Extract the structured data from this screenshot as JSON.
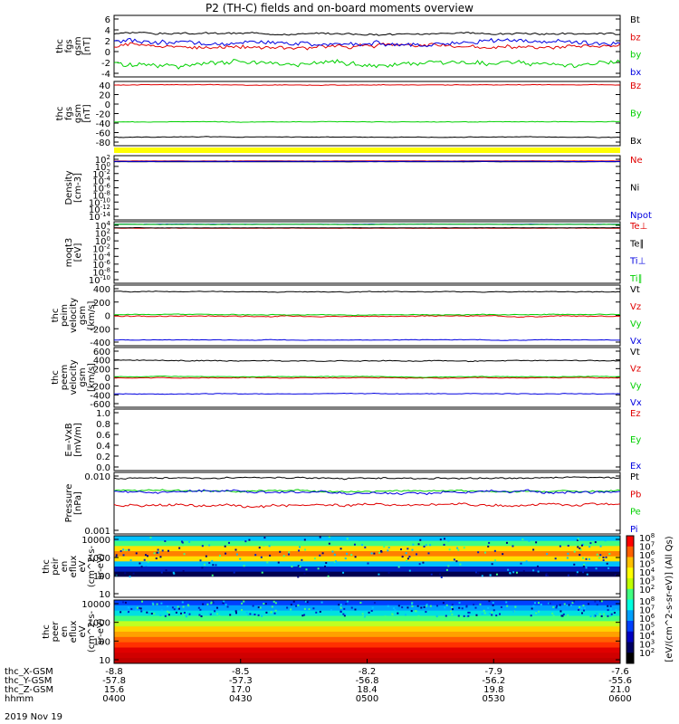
{
  "title": "P2 (TH-C) fields and on-board moments overview",
  "colors": {
    "black": "#000000",
    "red": "#e00000",
    "green": "#00d000",
    "blue": "#0000e0",
    "yellow": "#ffff00"
  },
  "x_axis": {
    "rows": [
      {
        "label": "thc_X-GSM",
        "values": [
          "-8.8",
          "-8.5",
          "-8.2",
          "-7.9",
          "-7.6"
        ]
      },
      {
        "label": "thc_Y-GSM",
        "values": [
          "-57.8",
          "-57.3",
          "-56.8",
          "-56.2",
          "-55.6"
        ]
      },
      {
        "label": "thc_Z-GSM",
        "values": [
          "15.6",
          "17.0",
          "18.4",
          "19.8",
          "21.0"
        ]
      },
      {
        "label": "hhmm",
        "values": [
          "0400",
          "0430",
          "0500",
          "0530",
          "0600"
        ]
      }
    ],
    "date": "2019 Nov 19"
  },
  "colorbar": {
    "label": "[eV/(cm^2-s-sr-eV)] (All Qs)",
    "ticks_top": [
      "10^8",
      "10^7",
      "10^6",
      "10^5",
      "10^4",
      "10^3",
      "10^2"
    ],
    "ticks_bottom": [
      "10^8",
      "10^7",
      "10^6",
      "10^5",
      "10^4",
      "10^3",
      "10^2"
    ]
  },
  "chart_data": [
    {
      "type": "line",
      "ylabel": [
        "thc",
        "fgs",
        "gsm",
        "[nT]"
      ],
      "yticks": [
        "6",
        "4",
        "2",
        "0",
        "-2",
        "-4"
      ],
      "ylim": [
        -4,
        6.5
      ],
      "series": [
        {
          "name": "Bt",
          "color": "#000000",
          "base": 3.4,
          "noise": 0.25
        },
        {
          "name": "bz",
          "color": "#e00000",
          "base": 1.2,
          "noise": 0.5
        },
        {
          "name": "by",
          "color": "#00d000",
          "base": -1.8,
          "noise": 0.6
        },
        {
          "name": "bx",
          "color": "#0000e0",
          "base": 1.8,
          "noise": 0.6
        }
      ]
    },
    {
      "type": "line",
      "ylabel": [
        "thc",
        "fgs",
        "gsm",
        "[nT]"
      ],
      "yticks": [
        "40",
        "20",
        "0",
        "-20",
        "-40",
        "-60",
        "-80"
      ],
      "ylim": [
        -90,
        45
      ],
      "series": [
        {
          "name": "Bz",
          "color": "#e00000",
          "base": 38,
          "noise": 1
        },
        {
          "name": "By",
          "color": "#00d000",
          "base": -40,
          "noise": 1
        },
        {
          "name": "Bx",
          "color": "#000000",
          "base": -72,
          "noise": 1
        }
      ]
    },
    {
      "type": "line",
      "ylabel": [
        "Density",
        "[cm-3]"
      ],
      "yticks": [
        "10^2",
        "10^0",
        "10^-2",
        "10^-4",
        "10^-6",
        "10^-8",
        "10^-10",
        "10^-12",
        "10^-14"
      ],
      "ylim": [
        -15,
        2
      ],
      "log": true,
      "series": [
        {
          "name": "Ne",
          "color": "#e00000",
          "base": 0.6,
          "noise": 0.05
        },
        {
          "name": "Ni",
          "color": "#000000",
          "base": 0.4,
          "noise": 0.05
        },
        {
          "name": "Npot",
          "color": "#0000e0",
          "base": 0.5,
          "noise": 0.05
        }
      ]
    },
    {
      "type": "line",
      "ylabel": [
        "moqt3",
        "[eV]"
      ],
      "yticks": [
        "10^4",
        "10^2",
        "10^0",
        "10^-2",
        "10^-4",
        "10^-6",
        "10^-8",
        "10^-10"
      ],
      "ylim": [
        -11,
        4.2
      ],
      "log": true,
      "series": [
        {
          "name": "Te⊥",
          "color": "#e00000",
          "base": 2.6,
          "noise": 0.05
        },
        {
          "name": "Te∥",
          "color": "#000000",
          "base": 2.7,
          "noise": 0.05
        },
        {
          "name": "Ti⊥",
          "color": "#0000e0",
          "base": 3.6,
          "noise": 0.05
        },
        {
          "name": "Ti∥",
          "color": "#00d000",
          "base": 3.55,
          "noise": 0.05
        }
      ]
    },
    {
      "type": "line",
      "ylabel": [
        "thc",
        "peim",
        "velocity",
        "gsm",
        "[km/s]"
      ],
      "yticks": [
        "400",
        "200",
        "0",
        "-200",
        "-400"
      ],
      "ylim": [
        -420,
        420
      ],
      "series": [
        {
          "name": "Vt",
          "color": "#000000",
          "base": 330,
          "noise": 8
        },
        {
          "name": "Vz",
          "color": "#e00000",
          "base": -10,
          "noise": 10
        },
        {
          "name": "Vy",
          "color": "#00d000",
          "base": 10,
          "noise": 8
        },
        {
          "name": "Vx",
          "color": "#0000e0",
          "base": -340,
          "noise": 6
        }
      ]
    },
    {
      "type": "line",
      "ylabel": [
        "thc",
        "peem",
        "velocity",
        "gsm",
        "[km/s]"
      ],
      "yticks": [
        "600",
        "400",
        "200",
        "0",
        "-200",
        "-400",
        "-600"
      ],
      "ylim": [
        -620,
        620
      ],
      "series": [
        {
          "name": "Vt",
          "color": "#000000",
          "base": 350,
          "noise": 15
        },
        {
          "name": "Vz",
          "color": "#e00000",
          "base": -10,
          "noise": 12
        },
        {
          "name": "Vy",
          "color": "#00d000",
          "base": 15,
          "noise": 10
        },
        {
          "name": "Vx",
          "color": "#0000e0",
          "base": -340,
          "noise": 10
        }
      ]
    },
    {
      "type": "line",
      "ylabel": [
        "E=-VxB",
        "[mV/m]"
      ],
      "yticks": [
        "1.0",
        "0.8",
        "0.6",
        "0.4",
        "0.2",
        "0.0"
      ],
      "ylim": [
        0,
        1.0
      ],
      "series": [
        {
          "name": "Ez",
          "color": "#e00000"
        },
        {
          "name": "Ey",
          "color": "#00d000"
        },
        {
          "name": "Ex",
          "color": "#0000e0"
        }
      ]
    },
    {
      "type": "line",
      "ylabel": [
        "Pressure",
        "[nPa]"
      ],
      "yticks": [
        "0.010",
        "0.001"
      ],
      "ylim": [
        -3.1,
        -1.5
      ],
      "log": true,
      "series": [
        {
          "name": "Pt",
          "color": "#000000",
          "base": -1.65,
          "noise": 0.03
        },
        {
          "name": "Pb",
          "color": "#e00000",
          "base": -2.35,
          "noise": 0.05
        },
        {
          "name": "Pe",
          "color": "#00d000",
          "base": -1.98,
          "noise": 0.03
        },
        {
          "name": "Pi",
          "color": "#0000e0",
          "base": -2.0,
          "noise": 0.05
        }
      ]
    },
    {
      "type": "heatmap",
      "ylabel": [
        "thc",
        "peir",
        "en",
        "eflux",
        "eV",
        "(cm^2-s-",
        "sr-eV)"
      ],
      "yticks": [
        "10000",
        "1000",
        "100",
        "10"
      ]
    },
    {
      "type": "heatmap",
      "ylabel": [
        "thc",
        "peer",
        "en",
        "eflux",
        "eV",
        "(cm^2-s-",
        "sr-eV)"
      ],
      "yticks": [
        "10000",
        "1000",
        "100",
        "10"
      ]
    }
  ]
}
